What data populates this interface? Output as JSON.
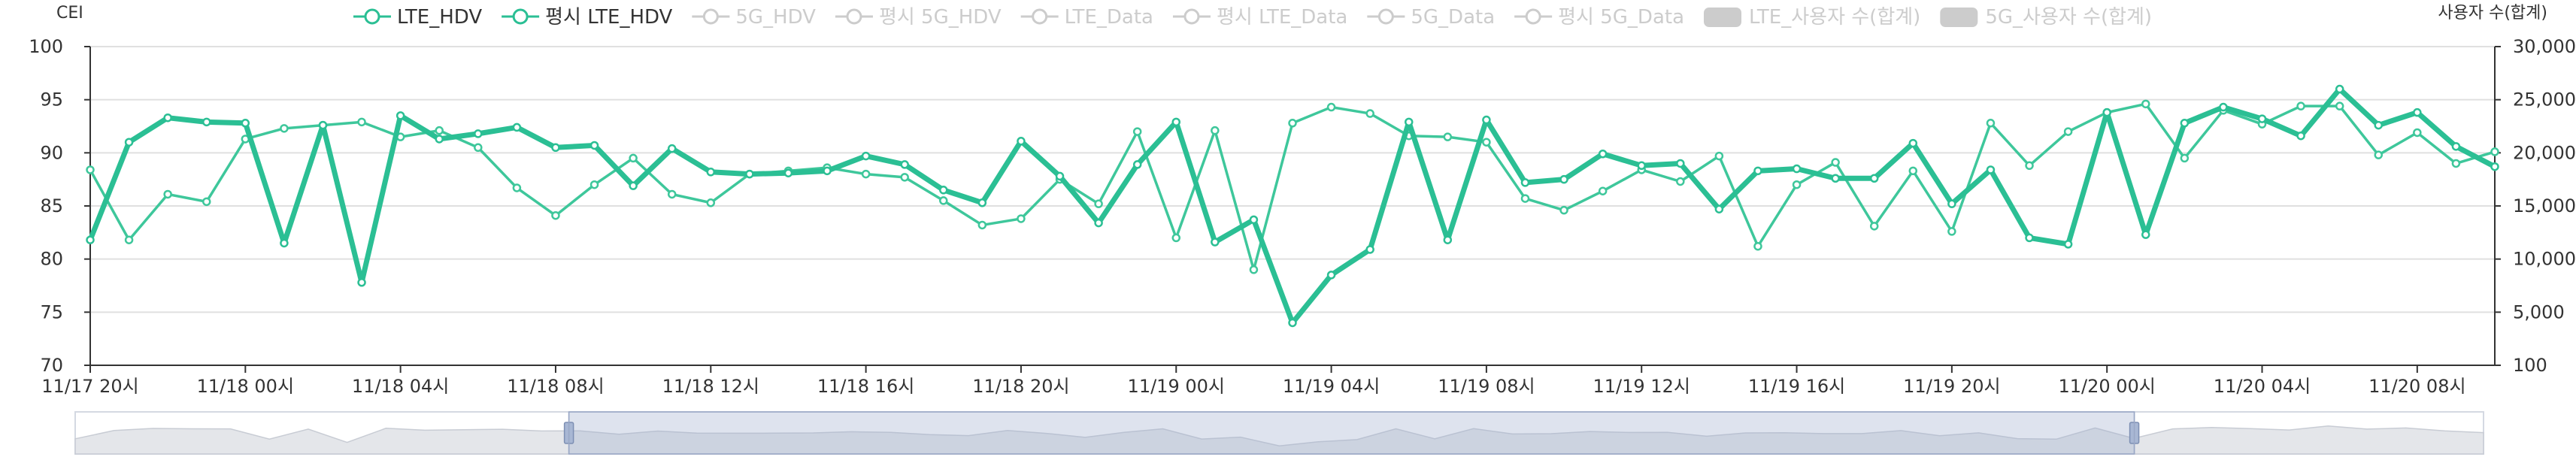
{
  "chart_data": {
    "type": "line",
    "yaxis_left": {
      "label": "CEI",
      "ticks": [
        "100",
        "95",
        "90",
        "85",
        "80",
        "75",
        "70"
      ],
      "range": [
        70,
        100
      ]
    },
    "yaxis_right": {
      "label": "사용자 수(합계)",
      "ticks": [
        "30,000",
        "25,000",
        "20,000",
        "15,000",
        "10,000",
        "5,000",
        "100"
      ]
    },
    "x_tick_labels": [
      "11/17 20시",
      "11/18 00시",
      "11/18 04시",
      "11/18 08시",
      "11/18 12시",
      "11/18 16시",
      "11/18 20시",
      "11/19 00시",
      "11/19 04시",
      "11/19 08시",
      "11/19 12시",
      "11/19 16시",
      "11/19 20시",
      "11/20 00시",
      "11/20 04시",
      "11/20 08시"
    ],
    "x_tick_index": [
      0,
      4,
      8,
      12,
      16,
      20,
      24,
      28,
      32,
      36,
      40,
      44,
      48,
      52,
      56,
      60
    ],
    "n_points": 63,
    "legend": [
      {
        "name": "LTE_HDV",
        "kind": "line",
        "active": true
      },
      {
        "name": "평시 LTE_HDV",
        "kind": "line",
        "active": true
      },
      {
        "name": "5G_HDV",
        "kind": "line",
        "active": false
      },
      {
        "name": "평시 5G_HDV",
        "kind": "line",
        "active": false
      },
      {
        "name": "LTE_Data",
        "kind": "line",
        "active": false
      },
      {
        "name": "평시 LTE_Data",
        "kind": "line",
        "active": false
      },
      {
        "name": "5G_Data",
        "kind": "line",
        "active": false
      },
      {
        "name": "평시 5G_Data",
        "kind": "line",
        "active": false
      },
      {
        "name": "LTE_사용자 수(합계)",
        "kind": "bar",
        "active": false
      },
      {
        "name": "5G_사용자 수(합계)",
        "kind": "bar",
        "active": false
      }
    ],
    "series": [
      {
        "name": "LTE_HDV",
        "color": "#2bbf94",
        "width": "thick",
        "values": [
          81.8,
          91.0,
          93.3,
          92.9,
          92.8,
          81.5,
          92.6,
          77.8,
          93.5,
          91.3,
          91.8,
          92.4,
          90.5,
          90.7,
          86.9,
          90.4,
          88.2,
          88.0,
          88.1,
          88.3,
          89.7,
          88.9,
          86.5,
          85.3,
          91.1,
          87.8,
          83.4,
          88.9,
          92.9,
          81.6,
          83.7,
          74.0,
          78.5,
          80.9,
          92.9,
          81.8,
          93.1,
          87.2,
          87.5,
          89.9,
          88.8,
          89.0,
          84.7,
          88.3,
          88.5,
          87.6,
          87.6,
          90.9,
          85.2,
          88.4,
          82.0,
          81.4,
          93.8,
          82.3,
          92.8,
          94.3,
          93.2,
          91.6,
          96.0,
          92.6,
          93.8,
          90.6,
          88.7
        ]
      },
      {
        "name": "평시 LTE_HDV",
        "color": "#3ec79b",
        "width": "thin",
        "values": [
          88.4,
          81.8,
          86.1,
          85.4,
          91.3,
          92.3,
          92.6,
          92.9,
          91.5,
          92.1,
          90.5,
          86.7,
          84.1,
          87.0,
          89.5,
          86.1,
          85.3,
          88.0,
          88.3,
          88.6,
          88.0,
          87.7,
          85.5,
          83.2,
          83.8,
          87.5,
          85.2,
          92.0,
          82.0,
          92.1,
          79.0,
          92.8,
          94.3,
          93.7,
          91.6,
          91.5,
          91.0,
          85.7,
          84.6,
          86.4,
          88.4,
          87.3,
          89.7,
          81.2,
          87.0,
          89.1,
          83.1,
          88.3,
          82.6,
          92.8,
          88.8,
          92.0,
          93.8,
          94.6,
          89.5,
          94.0,
          92.7,
          94.4,
          94.4,
          89.8,
          91.9,
          89.0,
          90.1
        ]
      }
    ],
    "dataZoom": {
      "start": 0.205,
      "end": 0.855
    }
  }
}
